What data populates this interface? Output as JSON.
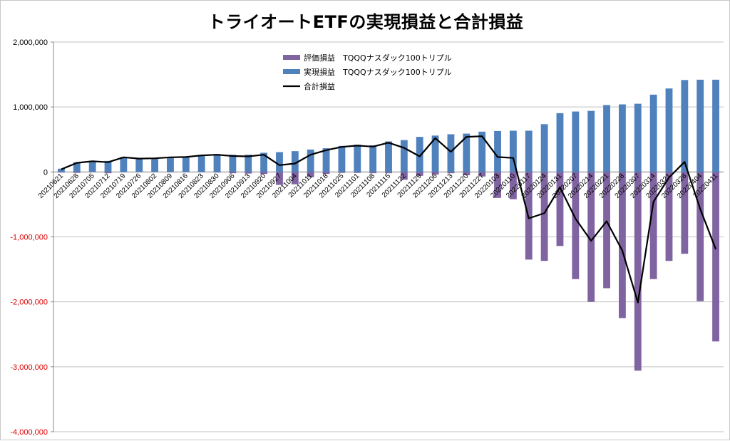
{
  "chart_data": {
    "type": "bar",
    "title": "トライオートETFの実現損益と合計損益",
    "ylim": [
      -4000000,
      2000000
    ],
    "yticks": [
      2000000,
      1000000,
      0,
      -1000000,
      -2000000,
      -3000000,
      -4000000
    ],
    "ytick_labels": [
      "2,000,000",
      "1,000,000",
      "0",
      "-1,000,000",
      "-2,000,000",
      "-3,000,000",
      "-4,000,000"
    ],
    "grid": true,
    "legend_position": "top-center",
    "categories": [
      "20210621",
      "20210628",
      "20210705",
      "20210712",
      "20210719",
      "20210726",
      "20210802",
      "20210809",
      "20210816",
      "20210823",
      "20210830",
      "20210906",
      "20210913",
      "20210920",
      "20210927",
      "20211004",
      "20211011",
      "20211018",
      "20211025",
      "20211101",
      "20211108",
      "20211115",
      "20211122",
      "20211129",
      "20211206",
      "20211213",
      "20211220",
      "20211227",
      "20220103",
      "20220110",
      "20220117",
      "20220124",
      "20220131",
      "20220207",
      "20220214",
      "20220221",
      "20220228",
      "20220307",
      "20220314",
      "20220321",
      "20220328",
      "20220404",
      "20220411"
    ],
    "series": [
      {
        "name": "評価損益　TQQQナスダック100トリプル",
        "type": "bar",
        "color": "#8064a2",
        "values": [
          -10000,
          -15000,
          -5000,
          -20000,
          -5000,
          -5000,
          -5000,
          -5000,
          -5000,
          -5000,
          -10000,
          -20000,
          -25000,
          -30000,
          -200000,
          -190000,
          -80000,
          -30000,
          -15000,
          -15000,
          -20000,
          -20000,
          -120000,
          -60000,
          -40000,
          -20000,
          -50000,
          -70000,
          -400000,
          -420000,
          -1350000,
          -1370000,
          -1140000,
          -1650000,
          -2000000,
          -1790000,
          -2250000,
          -3060000,
          -1650000,
          -1370000,
          -1260000,
          -1990000,
          -2610000
        ]
      },
      {
        "name": "実現損益　TQQQナスダック100トリプル",
        "type": "bar",
        "color": "#4f81bd",
        "values": [
          50000,
          150000,
          170000,
          170000,
          230000,
          210000,
          215000,
          230000,
          235000,
          260000,
          275000,
          265000,
          265000,
          295000,
          305000,
          320000,
          345000,
          365000,
          400000,
          420000,
          410000,
          470000,
          490000,
          540000,
          560000,
          580000,
          590000,
          620000,
          630000,
          635000,
          635000,
          735000,
          905000,
          930000,
          940000,
          1030000,
          1040000,
          1050000,
          1190000,
          1285000,
          1415000,
          1420000,
          1420000
        ]
      },
      {
        "name": "合計損益",
        "type": "line",
        "color": "#000000",
        "values": [
          40000,
          140000,
          165000,
          150000,
          225000,
          205000,
          210000,
          225000,
          230000,
          255000,
          265000,
          245000,
          240000,
          265000,
          105000,
          130000,
          265000,
          335000,
          385000,
          405000,
          390000,
          450000,
          370000,
          240000,
          520000,
          310000,
          540000,
          550000,
          230000,
          215000,
          -715000,
          -635000,
          -235000,
          -720000,
          -1060000,
          -760000,
          -1210000,
          -2010000,
          -460000,
          -85000,
          155000,
          -570000,
          -1190000
        ]
      }
    ]
  }
}
